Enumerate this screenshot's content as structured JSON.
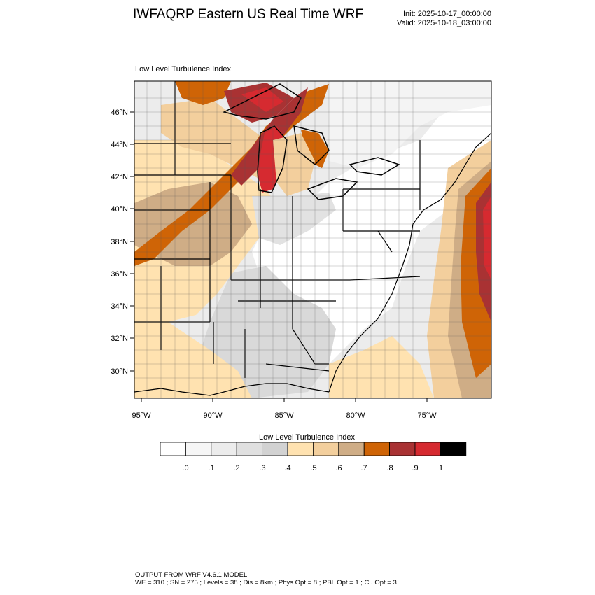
{
  "header": {
    "title": "IWFAQRP Eastern US Real Time WRF",
    "init": "Init: 2025-10-17_00:00:00",
    "valid": "Valid: 2025-10-18_03:00:00"
  },
  "map": {
    "title": "Low Level Turbulence Index",
    "lat_labels": [
      "46°N",
      "44°N",
      "42°N",
      "40°N",
      "38°N",
      "36°N",
      "34°N",
      "32°N",
      "30°N"
    ],
    "lon_labels": [
      "95°W",
      "90°W",
      "85°W",
      "80°W",
      "75°W"
    ]
  },
  "colorbar": {
    "title": "Low Level Turbulence Index",
    "colors": [
      "#ffffff",
      "#f6f6f6",
      "#ececec",
      "#e0e0e0",
      "#d2d2d2",
      "#ffe2b0",
      "#f3cf9d",
      "#cfad86",
      "#cf6406",
      "#a93233",
      "#d62a30",
      "#000000"
    ],
    "labels": [
      ".0",
      ".1",
      ".2",
      ".3",
      ".4",
      ".5",
      ".6",
      ".7",
      ".8",
      ".9",
      "1"
    ]
  },
  "footer": {
    "line1": "OUTPUT FROM WRF V4.6.1 MODEL",
    "line2": "WE = 310 ; SN = 275 ; Levels = 38 ; Dis = 8km ; Phys Opt = 8 ; PBL Opt = 1 ; Cu Opt = 3"
  }
}
